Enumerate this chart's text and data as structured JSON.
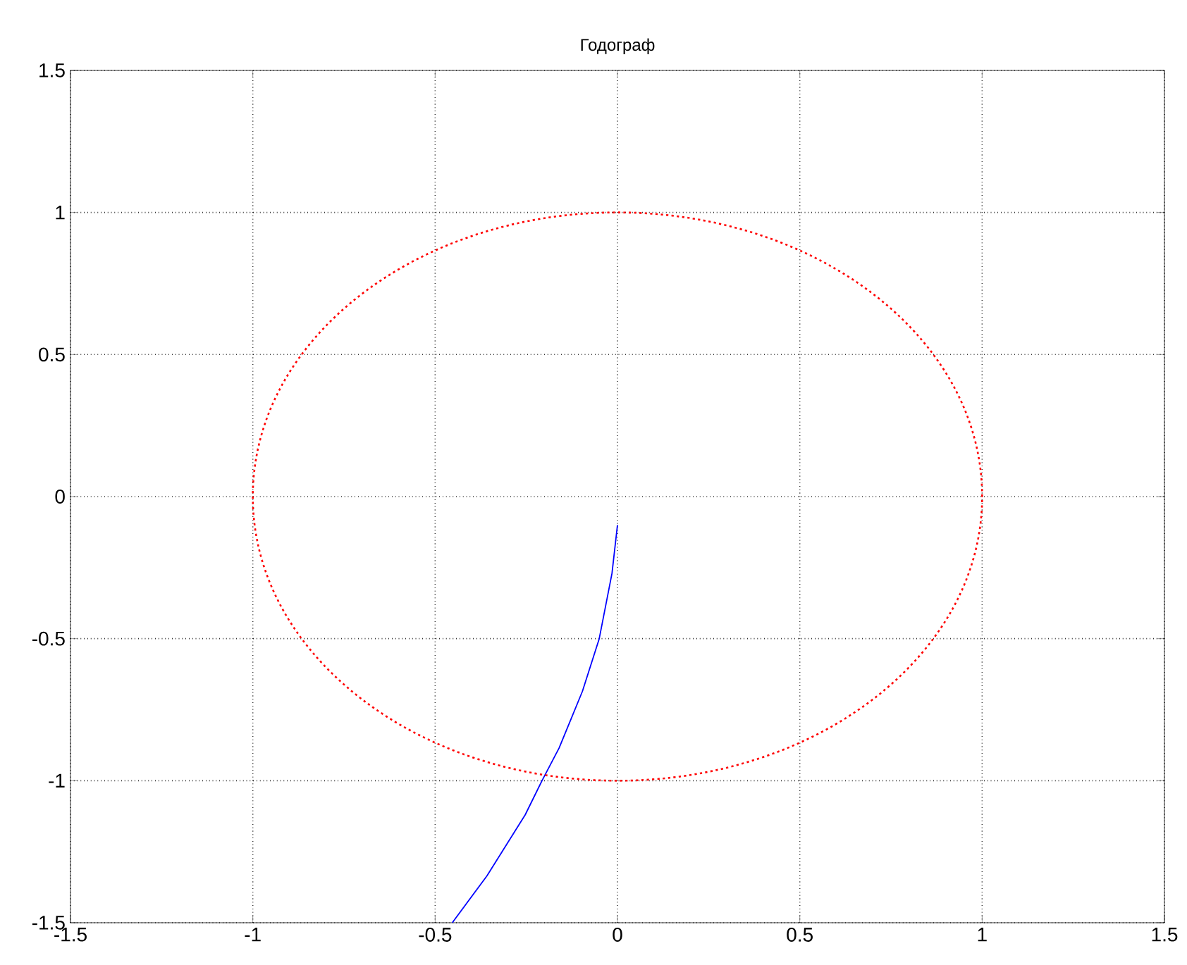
{
  "chart_data": {
    "type": "line",
    "title": "Годограф",
    "series": [
      {
        "color": "#0000ff",
        "line_style": "solid",
        "x": [
          0,
          -0.015,
          -0.05,
          -0.096,
          -0.16,
          -0.207,
          -0.253,
          -0.358,
          -0.453
        ],
        "values": [
          -0.1,
          -0.27,
          -0.5,
          -0.685,
          -0.885,
          -1,
          -1.12,
          -1.335,
          -1.5
        ]
      }
    ],
    "xlim": [
      -1.5,
      1.5
    ],
    "ylim": [
      -1.5,
      1.5
    ],
    "xticks": [
      -1.5,
      -1,
      -0.5,
      0,
      0.5,
      1,
      1.5
    ],
    "yticks": [
      -1.5,
      -1,
      -0.5,
      0,
      0.5,
      1,
      1.5
    ],
    "grid": true,
    "marker": "none"
  }
}
